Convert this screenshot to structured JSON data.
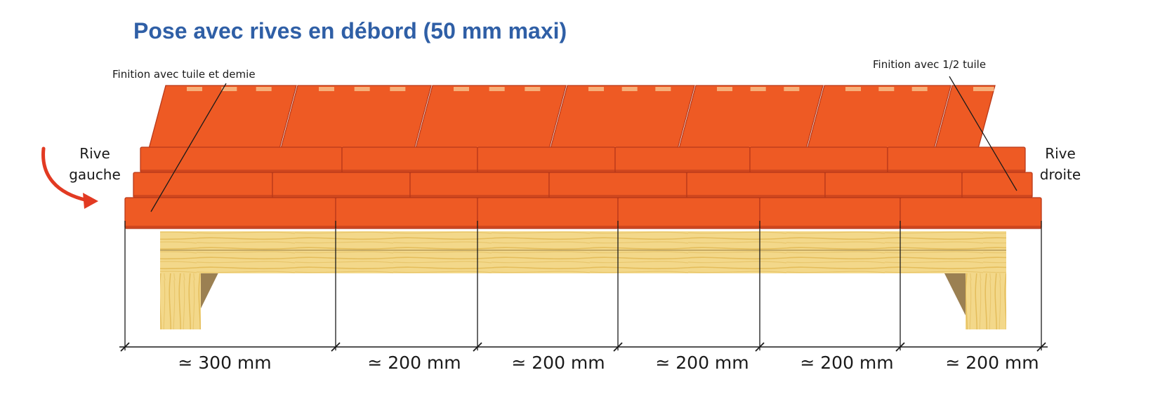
{
  "title": "Pose avec rives en débord (50 mm maxi)",
  "notes": {
    "left_finish": "Finition avec tuile et demie",
    "right_finish": "Finition avec 1/2 tuile"
  },
  "edges": {
    "left": {
      "line1": "Rive",
      "line2": "gauche"
    },
    "right": {
      "line1": "Rive",
      "line2": "droite"
    }
  },
  "dimensions": [
    "≃ 300 mm",
    "≃ 200 mm",
    "≃ 200 mm",
    "≃ 200 mm",
    "≃ 200 mm",
    "≃ 200 mm"
  ],
  "colors": {
    "title": "#2f5fa6",
    "tile": "#ee5a24",
    "tile_dark": "#b8391a",
    "wood": "#f3d88a",
    "arrow": "#e23a22"
  }
}
